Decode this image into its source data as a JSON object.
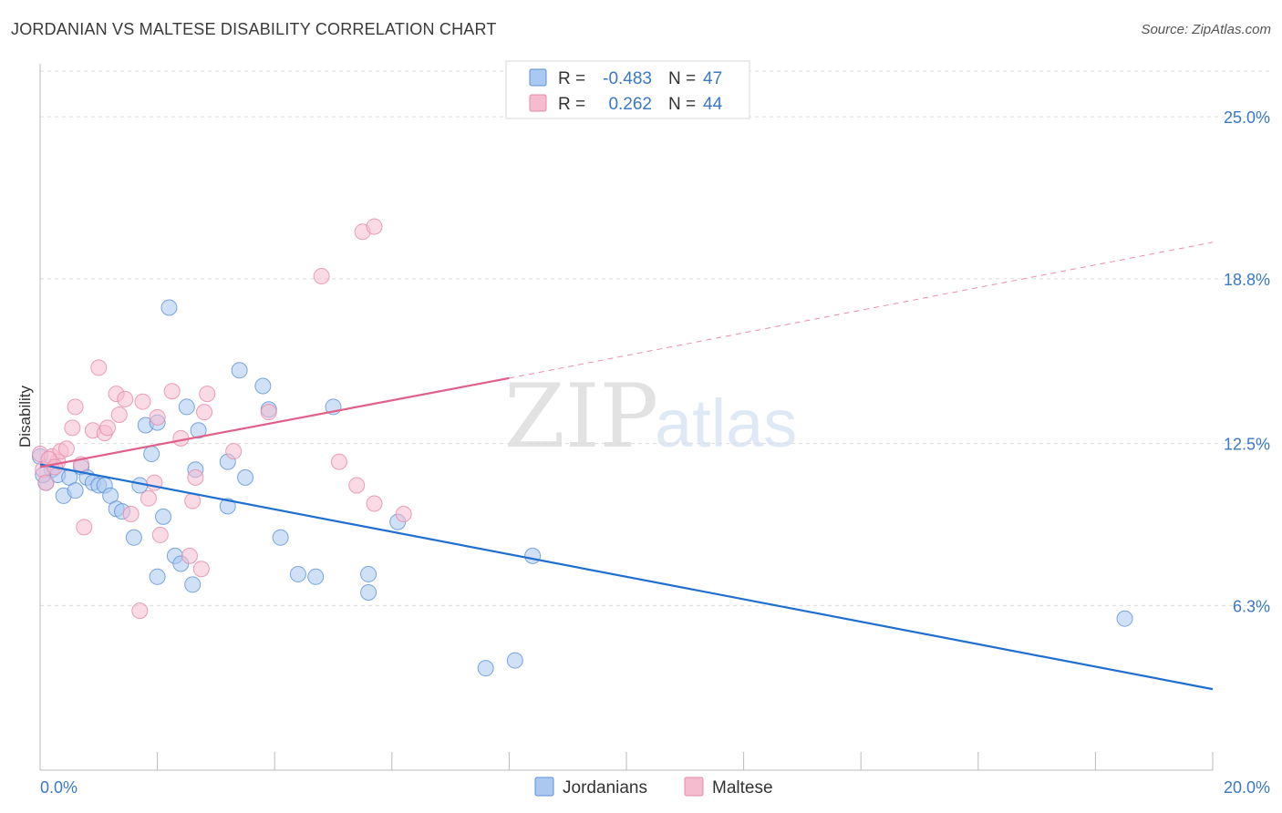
{
  "header": {
    "title": "JORDANIAN VS MALTESE DISABILITY CORRELATION CHART",
    "source": "Source: ZipAtlas.com"
  },
  "watermark": {
    "zip": "ZIP",
    "atlas": "atlas"
  },
  "legend": {
    "r_label": "R =",
    "n_label": "N =",
    "rows": [
      {
        "r": "-0.483",
        "n": "47"
      },
      {
        "r": "0.262",
        "n": "44"
      }
    ]
  },
  "colors": {
    "jordanians_fill": "#a9c9f0",
    "jordanians_stroke": "#5b91d6",
    "jordanians_line": "#1f6fd1",
    "maltese_fill": "#f5bcd0",
    "maltese_stroke": "#e58aa8",
    "maltese_line": "#e0608a",
    "axis_text": "#3a78c8"
  },
  "chart_data": {
    "type": "scatter",
    "title": "JORDANIAN VS MALTESE DISABILITY CORRELATION CHART",
    "xlabel": "",
    "ylabel": "Disability",
    "xlim": [
      0,
      20
    ],
    "ylim": [
      0,
      26.4
    ],
    "x_tick_labels": [
      "0.0%",
      "20.0%"
    ],
    "y_ticks": [
      6.3,
      12.5,
      18.8,
      25.0
    ],
    "y_tick_labels": [
      "6.3%",
      "12.5%",
      "18.8%",
      "25.0%"
    ],
    "grid": "horizontal dashed",
    "legend_position": "top-center",
    "series": [
      {
        "name": "Jordanians",
        "r": -0.483,
        "n": 47,
        "trend": {
          "x": [
            0,
            20
          ],
          "y": [
            11.7,
            3.1
          ],
          "style": "solid"
        },
        "points": [
          [
            0.0,
            12.0
          ],
          [
            0.1,
            11.0
          ],
          [
            0.2,
            11.5
          ],
          [
            0.3,
            11.3
          ],
          [
            0.4,
            10.5
          ],
          [
            0.5,
            11.2
          ],
          [
            0.6,
            10.7
          ],
          [
            0.7,
            11.6
          ],
          [
            0.8,
            11.2
          ],
          [
            0.9,
            11.0
          ],
          [
            1.0,
            10.9
          ],
          [
            1.1,
            10.9
          ],
          [
            1.2,
            10.5
          ],
          [
            1.3,
            10.0
          ],
          [
            1.4,
            9.9
          ],
          [
            1.6,
            8.9
          ],
          [
            1.7,
            10.9
          ],
          [
            1.8,
            13.2
          ],
          [
            1.9,
            12.1
          ],
          [
            2.0,
            13.3
          ],
          [
            2.0,
            7.4
          ],
          [
            2.1,
            9.7
          ],
          [
            2.2,
            17.7
          ],
          [
            2.3,
            8.2
          ],
          [
            2.4,
            7.9
          ],
          [
            2.5,
            13.9
          ],
          [
            2.6,
            7.1
          ],
          [
            2.65,
            11.5
          ],
          [
            2.7,
            13.0
          ],
          [
            3.2,
            11.8
          ],
          [
            3.2,
            10.1
          ],
          [
            3.4,
            15.3
          ],
          [
            3.5,
            11.2
          ],
          [
            3.8,
            14.7
          ],
          [
            3.9,
            13.8
          ],
          [
            4.1,
            8.9
          ],
          [
            4.4,
            7.5
          ],
          [
            4.7,
            7.4
          ],
          [
            5.0,
            13.9
          ],
          [
            5.6,
            6.8
          ],
          [
            5.6,
            7.5
          ],
          [
            6.1,
            9.5
          ],
          [
            7.6,
            3.9
          ],
          [
            8.1,
            4.2
          ],
          [
            8.4,
            8.2
          ],
          [
            18.5,
            5.8
          ],
          [
            0.05,
            11.3
          ]
        ]
      },
      {
        "name": "Maltese",
        "r": 0.262,
        "n": 44,
        "trend": {
          "x": [
            0,
            8
          ],
          "y": [
            11.6,
            15.0
          ],
          "style": "solid",
          "extended": {
            "x": [
              8,
              20
            ],
            "y": [
              15.0,
              20.2
            ],
            "style": "dashed"
          }
        },
        "points": [
          [
            0.0,
            12.1
          ],
          [
            0.05,
            11.5
          ],
          [
            0.1,
            11.0
          ],
          [
            0.2,
            12.0
          ],
          [
            0.3,
            11.8
          ],
          [
            0.35,
            12.2
          ],
          [
            0.45,
            12.3
          ],
          [
            0.55,
            13.1
          ],
          [
            0.6,
            13.9
          ],
          [
            0.7,
            11.7
          ],
          [
            0.75,
            9.3
          ],
          [
            0.9,
            13.0
          ],
          [
            1.0,
            15.4
          ],
          [
            1.1,
            12.9
          ],
          [
            1.15,
            13.1
          ],
          [
            1.3,
            14.4
          ],
          [
            1.35,
            13.6
          ],
          [
            1.45,
            14.2
          ],
          [
            1.55,
            9.8
          ],
          [
            1.7,
            6.1
          ],
          [
            1.75,
            14.1
          ],
          [
            1.85,
            10.4
          ],
          [
            1.95,
            11.0
          ],
          [
            2.0,
            13.5
          ],
          [
            2.05,
            9.0
          ],
          [
            2.25,
            14.5
          ],
          [
            2.4,
            12.7
          ],
          [
            2.55,
            8.2
          ],
          [
            2.6,
            10.3
          ],
          [
            2.65,
            11.2
          ],
          [
            2.75,
            7.7
          ],
          [
            2.8,
            13.7
          ],
          [
            2.85,
            14.4
          ],
          [
            3.3,
            12.2
          ],
          [
            3.9,
            13.7
          ],
          [
            4.8,
            18.9
          ],
          [
            5.1,
            11.8
          ],
          [
            5.4,
            10.9
          ],
          [
            5.5,
            20.6
          ],
          [
            5.7,
            20.8
          ],
          [
            5.7,
            10.2
          ],
          [
            6.2,
            9.8
          ],
          [
            0.15,
            11.9
          ],
          [
            0.25,
            11.6
          ]
        ]
      }
    ]
  },
  "bottom_legend": {
    "items": [
      "Jordanians",
      "Maltese"
    ]
  }
}
